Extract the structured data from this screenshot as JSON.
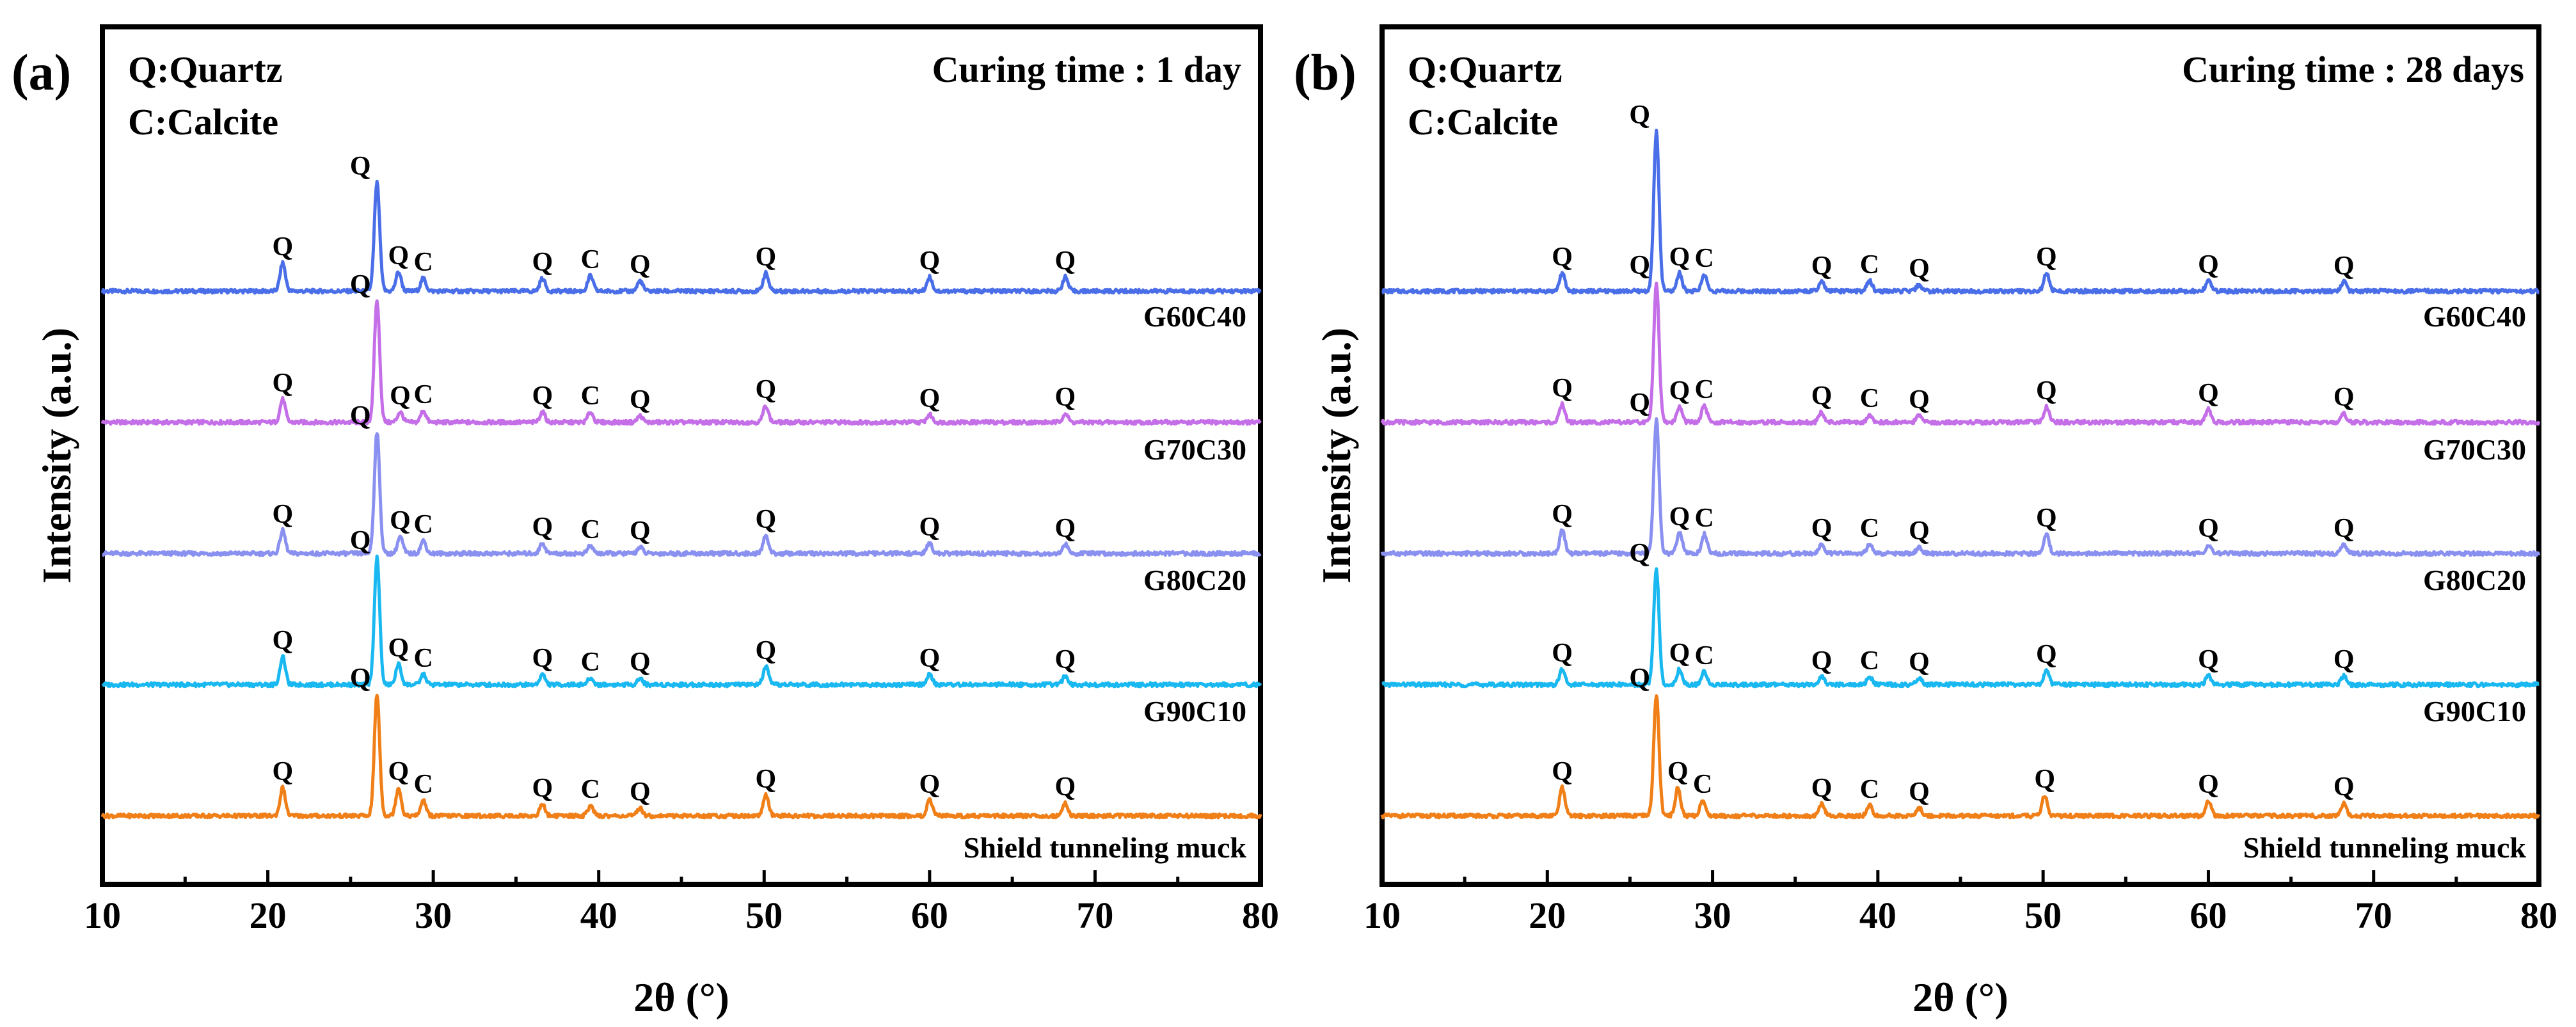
{
  "chart_data": [
    {
      "type": "line",
      "panel_label": "(a)",
      "curing_label": "Curing time : 1 day",
      "legend": [
        "Q:Quartz",
        "C:Calcite"
      ],
      "xlabel": "2θ (°)",
      "ylabel": "Intensity (a.u.)",
      "xlim": [
        10,
        80
      ],
      "x_ticks": [
        "10",
        "20",
        "30",
        "40",
        "50",
        "60",
        "70",
        "80"
      ],
      "series": [
        {
          "name": "G60C40",
          "color": "#4a6ee8",
          "offset": 4,
          "peaks": [
            {
              "x": 20.9,
              "h": 0.22,
              "label": "Q"
            },
            {
              "x": 26.6,
              "h": 0.85,
              "label": "Q"
            },
            {
              "x": 27.9,
              "h": 0.15,
              "label": "Q"
            },
            {
              "x": 29.4,
              "h": 0.1,
              "label": "C"
            },
            {
              "x": 36.6,
              "h": 0.1,
              "label": "Q"
            },
            {
              "x": 39.5,
              "h": 0.12,
              "label": "C"
            },
            {
              "x": 42.5,
              "h": 0.08,
              "label": "Q"
            },
            {
              "x": 50.1,
              "h": 0.14,
              "label": "Q"
            },
            {
              "x": 60.0,
              "h": 0.11,
              "label": "Q"
            },
            {
              "x": 68.2,
              "h": 0.11,
              "label": "Q"
            }
          ]
        },
        {
          "name": "G70C30",
          "color": "#c46ee8",
          "offset": 3,
          "peaks": [
            {
              "x": 20.9,
              "h": 0.18,
              "label": "Q"
            },
            {
              "x": 26.6,
              "h": 0.95,
              "label": "Q"
            },
            {
              "x": 28.0,
              "h": 0.08,
              "label": "Q"
            },
            {
              "x": 29.4,
              "h": 0.09,
              "label": "C"
            },
            {
              "x": 36.6,
              "h": 0.08,
              "label": "Q"
            },
            {
              "x": 39.5,
              "h": 0.08,
              "label": "C"
            },
            {
              "x": 42.5,
              "h": 0.05,
              "label": "Q"
            },
            {
              "x": 50.1,
              "h": 0.13,
              "label": "Q"
            },
            {
              "x": 60.0,
              "h": 0.06,
              "label": "Q"
            },
            {
              "x": 68.2,
              "h": 0.07,
              "label": "Q"
            }
          ]
        },
        {
          "name": "G80C20",
          "color": "#8a90ef",
          "offset": 2,
          "peaks": [
            {
              "x": 20.9,
              "h": 0.18,
              "label": "Q"
            },
            {
              "x": 26.6,
              "h": 0.95,
              "label": "Q"
            },
            {
              "x": 28.0,
              "h": 0.13,
              "label": "Q"
            },
            {
              "x": 29.4,
              "h": 0.1,
              "label": "C"
            },
            {
              "x": 36.6,
              "h": 0.08,
              "label": "Q"
            },
            {
              "x": 39.5,
              "h": 0.06,
              "label": "C"
            },
            {
              "x": 42.5,
              "h": 0.05,
              "label": "Q"
            },
            {
              "x": 50.1,
              "h": 0.14,
              "label": "Q"
            },
            {
              "x": 60.0,
              "h": 0.08,
              "label": "Q"
            },
            {
              "x": 68.2,
              "h": 0.07,
              "label": "Q"
            }
          ]
        },
        {
          "name": "G90C10",
          "color": "#1ab8f0",
          "offset": 1,
          "peaks": [
            {
              "x": 20.9,
              "h": 0.22,
              "label": "Q"
            },
            {
              "x": 26.6,
              "h": 1.0,
              "label": "Q"
            },
            {
              "x": 27.9,
              "h": 0.16,
              "label": "Q"
            },
            {
              "x": 29.4,
              "h": 0.08,
              "label": "C"
            },
            {
              "x": 36.6,
              "h": 0.08,
              "label": "Q"
            },
            {
              "x": 39.5,
              "h": 0.05,
              "label": "C"
            },
            {
              "x": 42.5,
              "h": 0.05,
              "label": "Q"
            },
            {
              "x": 50.1,
              "h": 0.14,
              "label": "Q"
            },
            {
              "x": 60.0,
              "h": 0.08,
              "label": "Q"
            },
            {
              "x": 68.2,
              "h": 0.07,
              "label": "Q"
            }
          ]
        },
        {
          "name": "Shield tunneling muck",
          "color": "#f07f18",
          "offset": 0,
          "peaks": [
            {
              "x": 20.9,
              "h": 0.22,
              "label": "Q"
            },
            {
              "x": 26.6,
              "h": 0.95,
              "label": "Q"
            },
            {
              "x": 27.9,
              "h": 0.22,
              "label": "Q"
            },
            {
              "x": 29.4,
              "h": 0.12,
              "label": "C"
            },
            {
              "x": 36.6,
              "h": 0.09,
              "label": "Q"
            },
            {
              "x": 39.5,
              "h": 0.08,
              "label": "C"
            },
            {
              "x": 42.5,
              "h": 0.06,
              "label": "Q"
            },
            {
              "x": 50.1,
              "h": 0.16,
              "label": "Q"
            },
            {
              "x": 60.0,
              "h": 0.12,
              "label": "Q"
            },
            {
              "x": 68.2,
              "h": 0.1,
              "label": "Q"
            }
          ]
        }
      ]
    },
    {
      "type": "line",
      "panel_label": "(b)",
      "curing_label": "Curing time : 28 days",
      "legend": [
        "Q:Quartz",
        "C:Calcite"
      ],
      "xlabel": "2θ (°)",
      "ylabel": "Intensity (a.u.)",
      "xlim": [
        10,
        80
      ],
      "x_ticks": [
        "10",
        "20",
        "30",
        "40",
        "50",
        "60",
        "70",
        "80"
      ],
      "series": [
        {
          "name": "G60C40",
          "color": "#4a6ee8",
          "offset": 4,
          "peaks": [
            {
              "x": 20.9,
              "h": 0.14,
              "label": "Q"
            },
            {
              "x": 26.6,
              "h": 1.25,
              "label": "Q"
            },
            {
              "x": 28.0,
              "h": 0.14,
              "label": "Q"
            },
            {
              "x": 29.5,
              "h": 0.13,
              "label": "C"
            },
            {
              "x": 36.6,
              "h": 0.07,
              "label": "Q"
            },
            {
              "x": 39.5,
              "h": 0.08,
              "label": "C"
            },
            {
              "x": 42.5,
              "h": 0.05,
              "label": "Q"
            },
            {
              "x": 50.2,
              "h": 0.14,
              "label": "Q"
            },
            {
              "x": 60.0,
              "h": 0.08,
              "label": "Q"
            },
            {
              "x": 68.2,
              "h": 0.07,
              "label": "Q"
            }
          ]
        },
        {
          "name": "G70C30",
          "color": "#c46ee8",
          "offset": 3,
          "peaks": [
            {
              "x": 20.9,
              "h": 0.14,
              "label": "Q"
            },
            {
              "x": 26.6,
              "h": 1.1,
              "label": "Q"
            },
            {
              "x": 28.0,
              "h": 0.12,
              "label": "Q"
            },
            {
              "x": 29.5,
              "h": 0.13,
              "label": "C"
            },
            {
              "x": 36.6,
              "h": 0.08,
              "label": "Q"
            },
            {
              "x": 39.5,
              "h": 0.06,
              "label": "C"
            },
            {
              "x": 42.5,
              "h": 0.05,
              "label": "Q"
            },
            {
              "x": 50.2,
              "h": 0.12,
              "label": "Q"
            },
            {
              "x": 60.0,
              "h": 0.1,
              "label": "Q"
            },
            {
              "x": 68.2,
              "h": 0.07,
              "label": "Q"
            }
          ]
        },
        {
          "name": "G80C20",
          "color": "#8a90ef",
          "offset": 2,
          "peaks": [
            {
              "x": 20.9,
              "h": 0.18,
              "label": "Q"
            },
            {
              "x": 26.6,
              "h": 1.05,
              "label": "Q"
            },
            {
              "x": 28.0,
              "h": 0.16,
              "label": "Q"
            },
            {
              "x": 29.5,
              "h": 0.15,
              "label": "C"
            },
            {
              "x": 36.6,
              "h": 0.07,
              "label": "Q"
            },
            {
              "x": 39.5,
              "h": 0.07,
              "label": "C"
            },
            {
              "x": 42.5,
              "h": 0.05,
              "label": "Q"
            },
            {
              "x": 50.2,
              "h": 0.15,
              "label": "Q"
            },
            {
              "x": 60.0,
              "h": 0.07,
              "label": "Q"
            },
            {
              "x": 68.2,
              "h": 0.07,
              "label": "Q"
            }
          ]
        },
        {
          "name": "G90C10",
          "color": "#1ab8f0",
          "offset": 1,
          "peaks": [
            {
              "x": 20.9,
              "h": 0.12,
              "label": "Q"
            },
            {
              "x": 26.6,
              "h": 0.9,
              "label": "Q"
            },
            {
              "x": 28.0,
              "h": 0.12,
              "label": "Q"
            },
            {
              "x": 29.5,
              "h": 0.1,
              "label": "C"
            },
            {
              "x": 36.6,
              "h": 0.06,
              "label": "Q"
            },
            {
              "x": 39.5,
              "h": 0.06,
              "label": "C"
            },
            {
              "x": 42.5,
              "h": 0.05,
              "label": "Q"
            },
            {
              "x": 50.2,
              "h": 0.11,
              "label": "Q"
            },
            {
              "x": 60.0,
              "h": 0.07,
              "label": "Q"
            },
            {
              "x": 68.2,
              "h": 0.07,
              "label": "Q"
            }
          ]
        },
        {
          "name": "Shield tunneling muck",
          "color": "#f07f18",
          "offset": 0,
          "peaks": [
            {
              "x": 20.9,
              "h": 0.22,
              "label": "Q"
            },
            {
              "x": 26.6,
              "h": 0.95,
              "label": "Q"
            },
            {
              "x": 27.9,
              "h": 0.22,
              "label": "Q"
            },
            {
              "x": 29.4,
              "h": 0.12,
              "label": "C"
            },
            {
              "x": 36.6,
              "h": 0.09,
              "label": "Q"
            },
            {
              "x": 39.5,
              "h": 0.08,
              "label": "C"
            },
            {
              "x": 42.5,
              "h": 0.06,
              "label": "Q"
            },
            {
              "x": 50.1,
              "h": 0.16,
              "label": "Q"
            },
            {
              "x": 60.0,
              "h": 0.12,
              "label": "Q"
            },
            {
              "x": 68.2,
              "h": 0.1,
              "label": "Q"
            }
          ]
        }
      ]
    }
  ]
}
